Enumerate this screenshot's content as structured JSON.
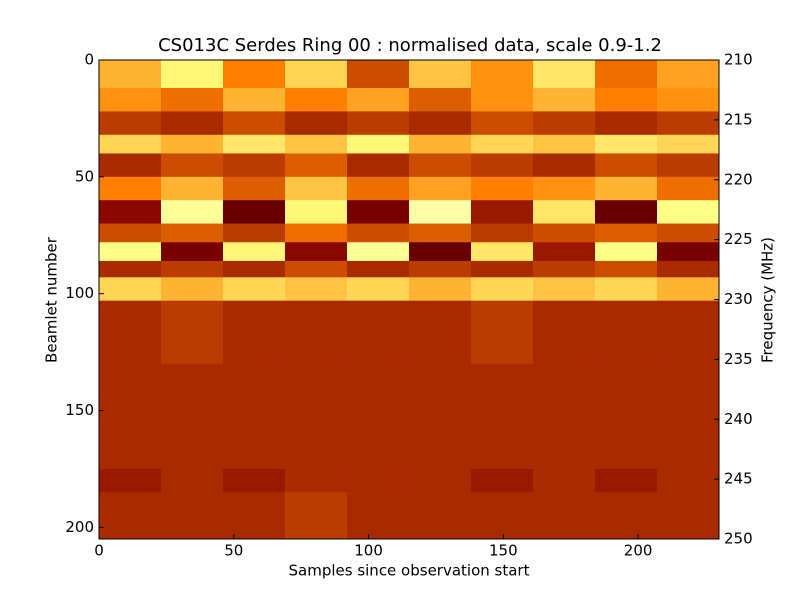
{
  "chart_data": {
    "type": "heatmap",
    "title": "CS013C Serdes Ring 00 : normalised data, scale 0.9-1.2",
    "xlabel": "Samples since observation start",
    "ylabel": "Beamlet number",
    "y2label": "Frequency (MHz)",
    "colormap": "afmhot",
    "zlim": [
      0.9,
      1.2
    ],
    "xlim": [
      0,
      230
    ],
    "xticks": [
      0,
      50,
      100,
      150,
      200
    ],
    "ylim": [
      205,
      0
    ],
    "yticks": [
      0,
      50,
      100,
      150,
      200
    ],
    "y2lim": [
      250,
      210
    ],
    "y2ticks": [
      210,
      215,
      220,
      225,
      230,
      235,
      240,
      245,
      250
    ],
    "x_edges": [
      0,
      23,
      46,
      69,
      92,
      115,
      138,
      161,
      184,
      207,
      230
    ],
    "y_edges": [
      0,
      12,
      22,
      32,
      40,
      50,
      60,
      70,
      78,
      86,
      93,
      103,
      130,
      175,
      185,
      205
    ],
    "z": [
      [
        1.08,
        1.12,
        1.05,
        1.1,
        1.02,
        1.09,
        1.06,
        1.11,
        1.04,
        1.07
      ],
      [
        1.06,
        1.04,
        1.08,
        1.05,
        1.07,
        1.03,
        1.06,
        1.08,
        1.05,
        1.06
      ],
      [
        1.01,
        1.0,
        1.02,
        1.0,
        1.01,
        1.0,
        1.02,
        1.01,
        1.0,
        1.01
      ],
      [
        1.1,
        1.08,
        1.11,
        1.09,
        1.12,
        1.08,
        1.1,
        1.09,
        1.11,
        1.1
      ],
      [
        1.0,
        1.02,
        1.01,
        1.03,
        1.0,
        1.02,
        1.01,
        1.0,
        1.02,
        1.01
      ],
      [
        1.05,
        1.08,
        1.03,
        1.09,
        1.04,
        1.07,
        1.05,
        1.06,
        1.08,
        1.04
      ],
      [
        0.98,
        1.14,
        0.96,
        1.12,
        0.97,
        1.15,
        0.99,
        1.11,
        0.96,
        1.13
      ],
      [
        1.02,
        1.03,
        1.01,
        1.04,
        1.02,
        1.03,
        1.01,
        1.02,
        1.03,
        1.02
      ],
      [
        1.13,
        0.97,
        1.12,
        0.98,
        1.14,
        0.96,
        1.11,
        0.99,
        1.13,
        0.97
      ],
      [
        1.0,
        1.01,
        1.0,
        1.02,
        1.0,
        1.01,
        1.0,
        1.01,
        1.02,
        1.0
      ],
      [
        1.1,
        1.08,
        1.1,
        1.09,
        1.1,
        1.08,
        1.1,
        1.09,
        1.1,
        1.08
      ],
      [
        1.0,
        1.01,
        1.0,
        1.0,
        1.0,
        1.0,
        1.01,
        1.0,
        1.0,
        1.0
      ],
      [
        1.0,
        1.0,
        1.0,
        1.0,
        1.0,
        1.0,
        1.0,
        1.0,
        1.0,
        1.0
      ],
      [
        0.99,
        1.0,
        0.99,
        1.0,
        1.0,
        1.0,
        0.99,
        1.0,
        0.99,
        1.0
      ],
      [
        1.0,
        1.0,
        1.0,
        1.01,
        1.0,
        1.0,
        1.0,
        1.0,
        1.0,
        1.0
      ]
    ]
  }
}
